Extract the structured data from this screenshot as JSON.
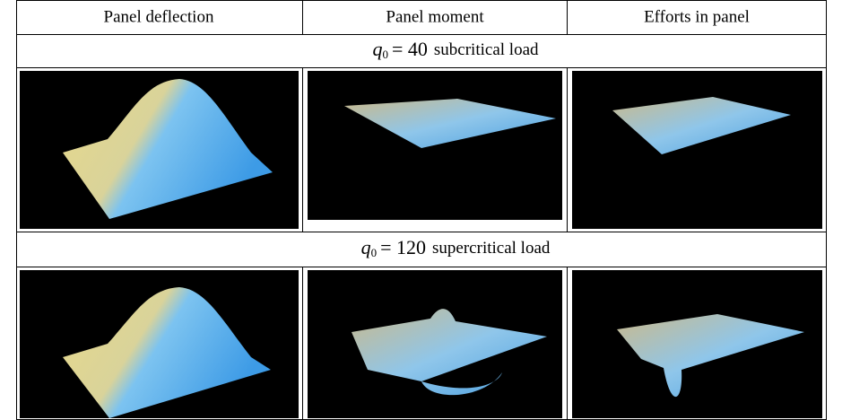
{
  "table": {
    "header": [
      "Panel deflection",
      "Panel moment",
      "Efforts in panel"
    ],
    "sections": [
      {
        "variable": "q",
        "subscript": "0",
        "equation": "= 40",
        "text": "subcritical load"
      },
      {
        "variable": "q",
        "subscript": "0",
        "equation": "= 120",
        "text": "supercritical load"
      }
    ]
  }
}
